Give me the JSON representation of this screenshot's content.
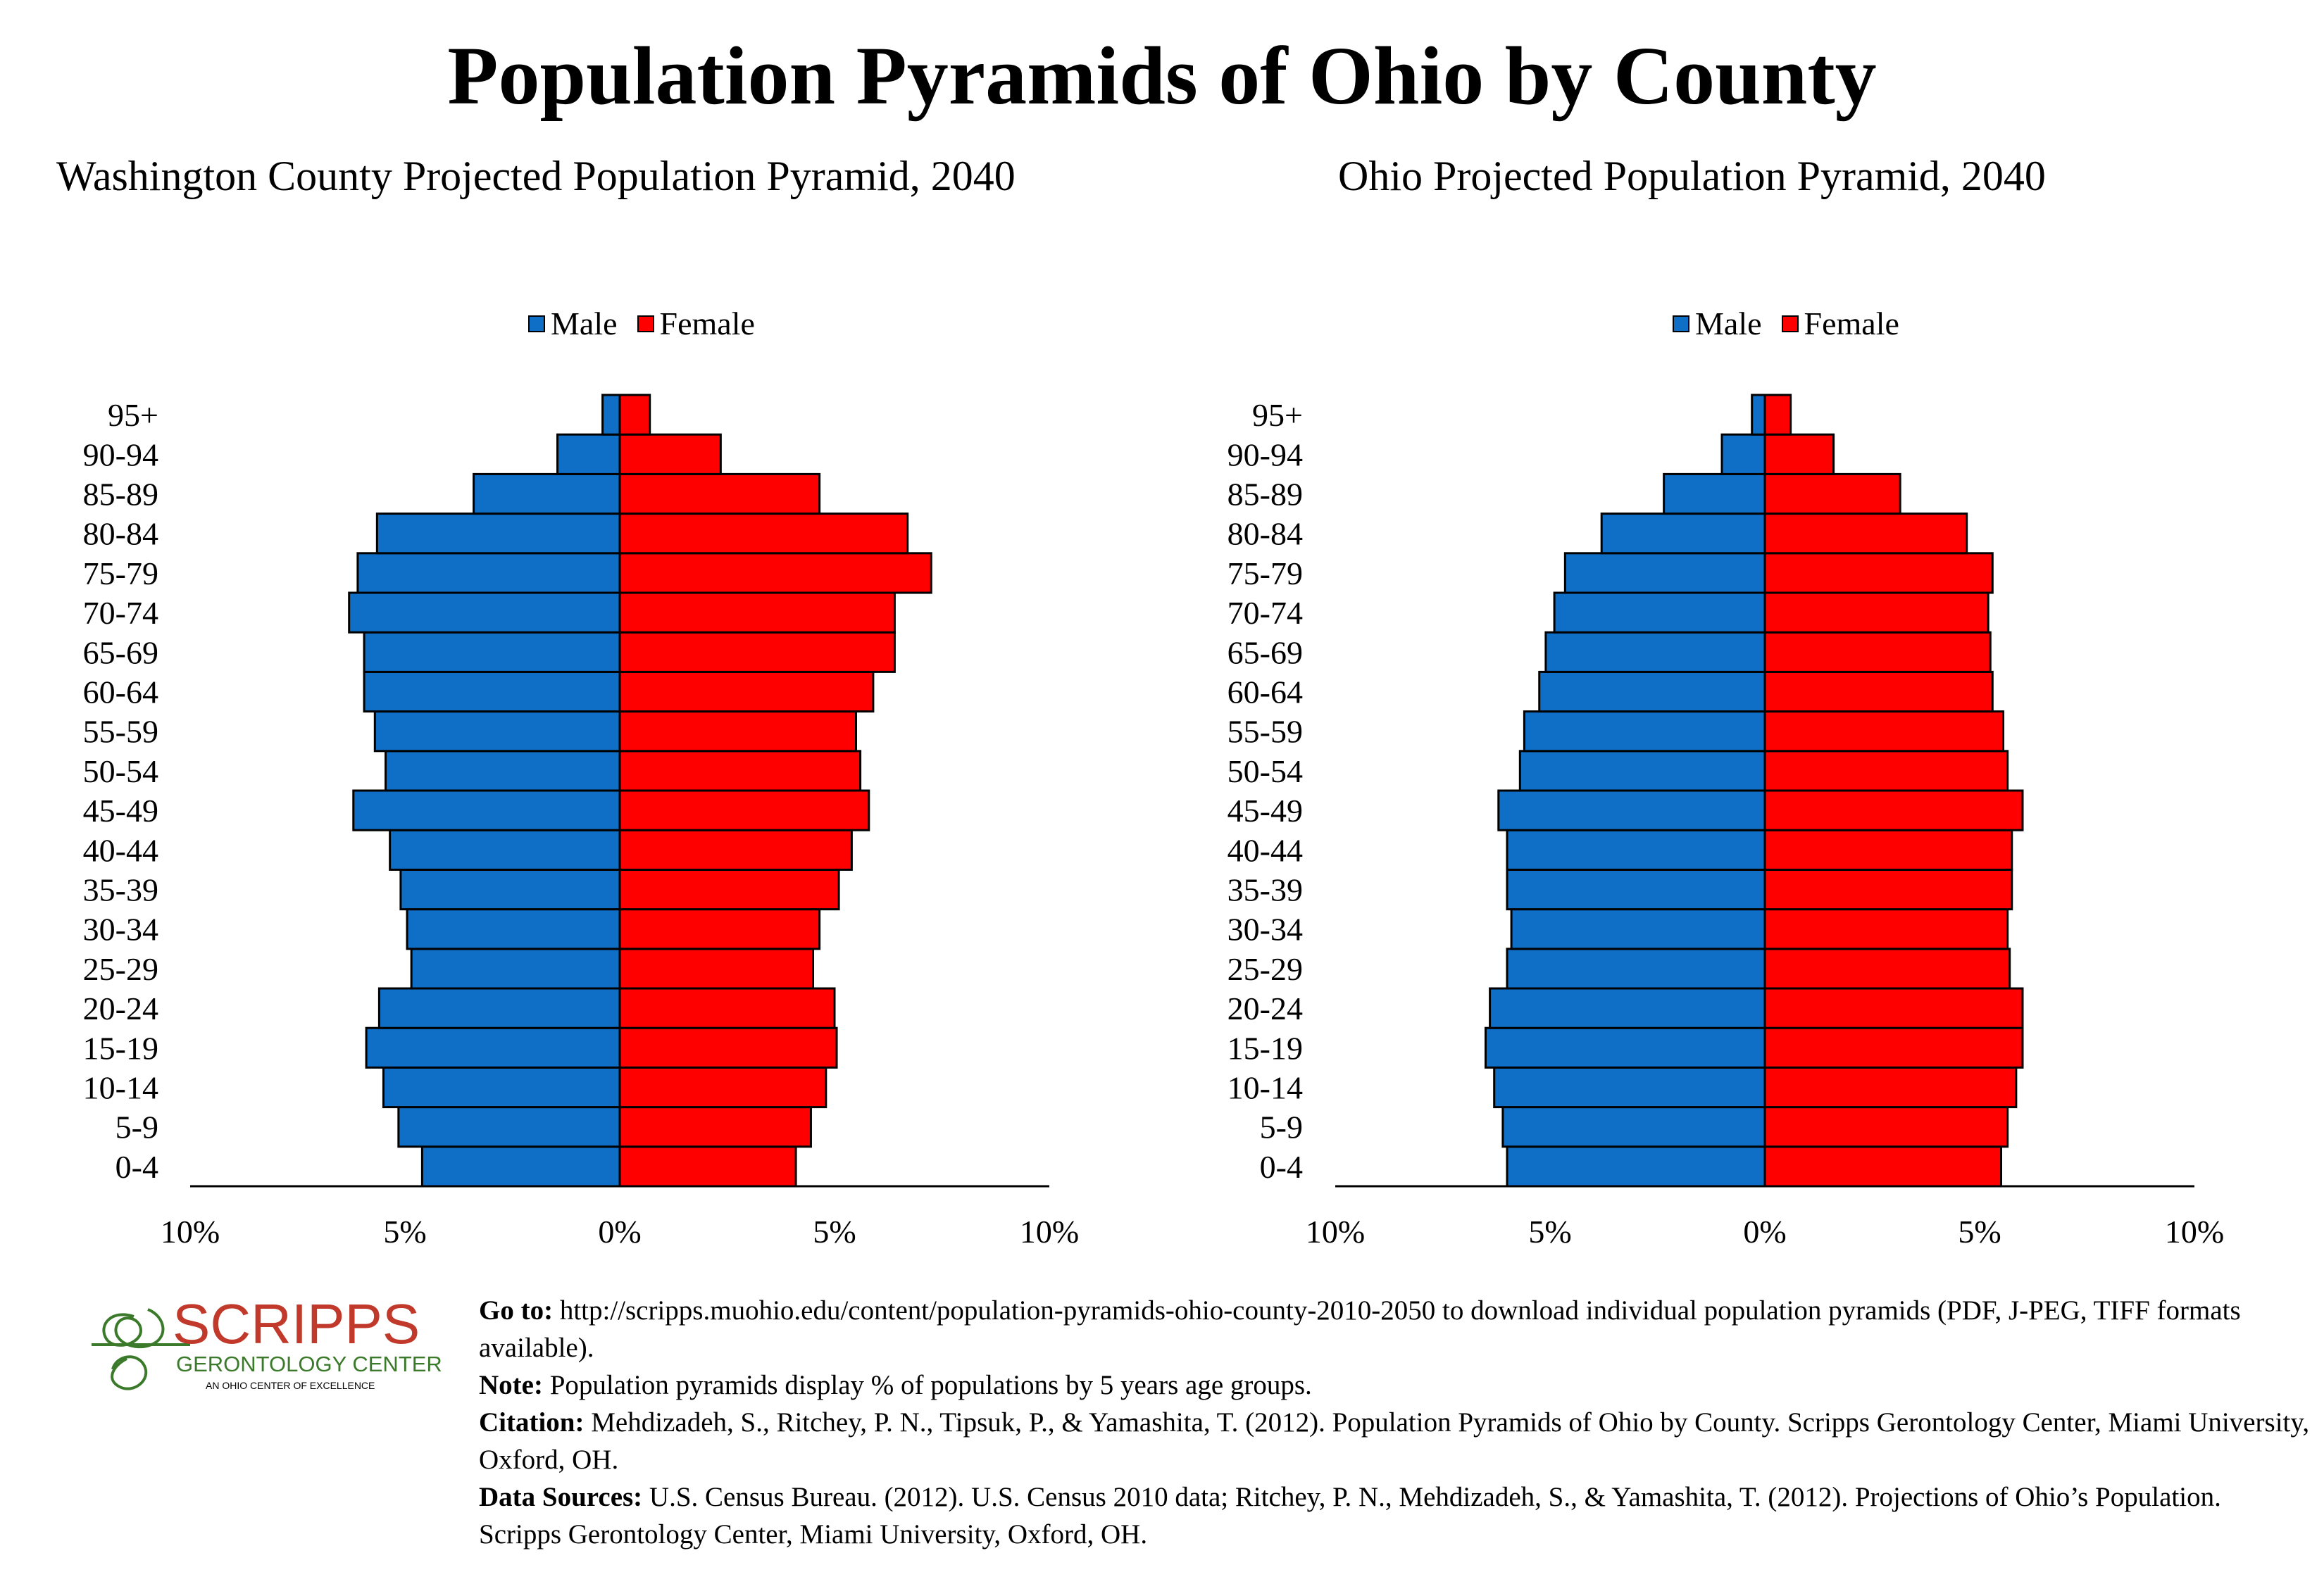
{
  "header": {
    "title": "Population Pyramids of Ohio by County"
  },
  "colors": {
    "male": "#0F6FC6",
    "female": "#FF0000",
    "logo": "#C0392B",
    "logo_green": "#3A7A2A"
  },
  "legend": {
    "male": "Male",
    "female": "Female"
  },
  "chart_data": [
    {
      "type": "bar",
      "orientation": "horizontal-pyramid",
      "title": "Washington County Projected Population Pyramid, 2040",
      "categories": [
        "0-4",
        "5-9",
        "10-14",
        "15-19",
        "20-24",
        "25-29",
        "30-34",
        "35-39",
        "40-44",
        "45-49",
        "50-54",
        "55-59",
        "60-64",
        "65-69",
        "70-74",
        "75-79",
        "80-84",
        "85-89",
        "90-94",
        "95+"
      ],
      "series": [
        {
          "name": "Male",
          "values": [
            4.6,
            5.15,
            5.5,
            5.9,
            5.6,
            4.85,
            4.95,
            5.1,
            5.35,
            6.2,
            5.45,
            5.7,
            5.95,
            5.95,
            6.3,
            6.1,
            5.65,
            3.4,
            1.45,
            0.4
          ]
        },
        {
          "name": "Female",
          "values": [
            4.1,
            4.45,
            4.8,
            5.05,
            5.0,
            4.5,
            4.65,
            5.1,
            5.4,
            5.8,
            5.6,
            5.5,
            5.9,
            6.4,
            6.4,
            7.25,
            6.7,
            4.65,
            2.35,
            0.7
          ]
        }
      ],
      "xlim": [
        -10,
        10
      ],
      "x_ticks": [
        "10%",
        "5%",
        "0%",
        "5%",
        "10%"
      ]
    },
    {
      "type": "bar",
      "orientation": "horizontal-pyramid",
      "title": "Ohio Projected Population Pyramid, 2040",
      "categories": [
        "0-4",
        "5-9",
        "10-14",
        "15-19",
        "20-24",
        "25-29",
        "30-34",
        "35-39",
        "40-44",
        "45-49",
        "50-54",
        "55-59",
        "60-64",
        "65-69",
        "70-74",
        "75-79",
        "80-84",
        "85-89",
        "90-94",
        "95+"
      ],
      "series": [
        {
          "name": "Male",
          "values": [
            6.0,
            6.1,
            6.3,
            6.5,
            6.4,
            6.0,
            5.9,
            6.0,
            6.0,
            6.2,
            5.7,
            5.6,
            5.25,
            5.1,
            4.9,
            4.65,
            3.8,
            2.35,
            1.0,
            0.3
          ]
        },
        {
          "name": "Female",
          "values": [
            5.5,
            5.65,
            5.85,
            6.0,
            6.0,
            5.7,
            5.65,
            5.75,
            5.75,
            6.0,
            5.65,
            5.55,
            5.3,
            5.25,
            5.2,
            5.3,
            4.7,
            3.15,
            1.6,
            0.6
          ]
        }
      ],
      "xlim": [
        -10,
        10
      ],
      "x_ticks": [
        "10%",
        "5%",
        "0%",
        "5%",
        "10%"
      ]
    }
  ],
  "logo": {
    "name": "SCRIPPS",
    "subtitle": "GERONTOLOGY CENTER",
    "tagline": "AN OHIO CENTER OF EXCELLENCE"
  },
  "footer": {
    "goto_label": "Go to:",
    "goto_text": "http://scripps.muohio.edu/content/population-pyramids-ohio-county-2010-2050 to download individual population pyramids (PDF, J-PEG, TIFF formats available).",
    "note_label": "Note:",
    "note_text": "Population pyramids display % of populations by 5 years age groups.",
    "citation_label": "Citation:",
    "citation_text": "Mehdizadeh, S., Ritchey, P. N., Tipsuk, P., & Yamashita, T. (2012). Population Pyramids of Ohio by County. Scripps Gerontology Center, Miami University, Oxford, OH.",
    "sources_label": "Data Sources:",
    "sources_text": "U.S. Census Bureau. (2012). U.S. Census 2010 data; Ritchey, P. N., Mehdizadeh, S., & Yamashita, T. (2012). Projections of Ohio’s Population. Scripps Gerontology Center, Miami University, Oxford, OH."
  }
}
